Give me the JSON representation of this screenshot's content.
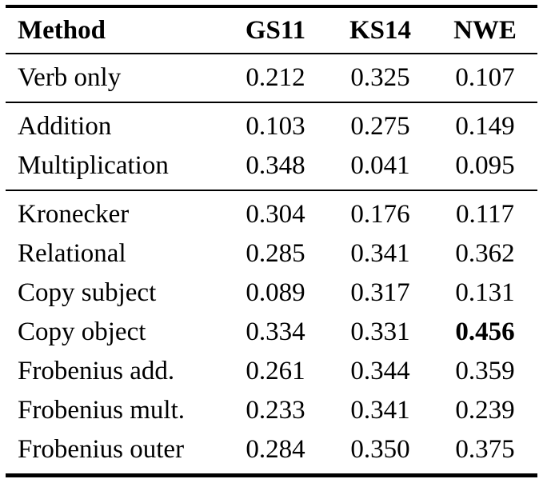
{
  "table": {
    "columns": [
      "Method",
      "GS11",
      "KS14",
      "NWE"
    ],
    "sections": [
      {
        "rows": [
          {
            "method": "Verb only",
            "values": [
              "0.212",
              "0.325",
              "0.107"
            ]
          }
        ]
      },
      {
        "rows": [
          {
            "method": "Addition",
            "values": [
              "0.103",
              "0.275",
              "0.149"
            ]
          },
          {
            "method": "Multiplication",
            "values": [
              "0.348",
              "0.041",
              "0.095"
            ]
          }
        ]
      },
      {
        "rows": [
          {
            "method": "Kronecker",
            "values": [
              "0.304",
              "0.176",
              "0.117"
            ]
          },
          {
            "method": "Relational",
            "values": [
              "0.285",
              "0.341",
              "0.362"
            ]
          },
          {
            "method": "Copy subject",
            "values": [
              "0.089",
              "0.317",
              "0.131"
            ]
          },
          {
            "method": "Copy object",
            "values": [
              "0.334",
              "0.331",
              "0.456"
            ],
            "bold_index": 2
          },
          {
            "method": "Frobenius add.",
            "values": [
              "0.261",
              "0.344",
              "0.359"
            ]
          },
          {
            "method": "Frobenius mult.",
            "values": [
              "0.233",
              "0.341",
              "0.239"
            ]
          },
          {
            "method": "Frobenius outer",
            "values": [
              "0.284",
              "0.350",
              "0.375"
            ]
          }
        ]
      }
    ],
    "colors": {
      "text": "#000000",
      "rule": "#000000",
      "background": "#ffffff"
    }
  },
  "chart_data": {
    "type": "table",
    "title": "",
    "columns": [
      "Method",
      "GS11",
      "KS14",
      "NWE"
    ],
    "rows": [
      [
        "Verb only",
        0.212,
        0.325,
        0.107
      ],
      [
        "Addition",
        0.103,
        0.275,
        0.149
      ],
      [
        "Multiplication",
        0.348,
        0.041,
        0.095
      ],
      [
        "Kronecker",
        0.304,
        0.176,
        0.117
      ],
      [
        "Relational",
        0.285,
        0.341,
        0.362
      ],
      [
        "Copy subject",
        0.089,
        0.317,
        0.131
      ],
      [
        "Copy object",
        0.334,
        0.331,
        0.456
      ],
      [
        "Frobenius add.",
        0.261,
        0.344,
        0.359
      ],
      [
        "Frobenius mult.",
        0.233,
        0.341,
        0.239
      ],
      [
        "Frobenius outer",
        0.284,
        0.35,
        0.375
      ]
    ],
    "notes": "0.456 (Copy object, NWE) is bold / best value"
  }
}
